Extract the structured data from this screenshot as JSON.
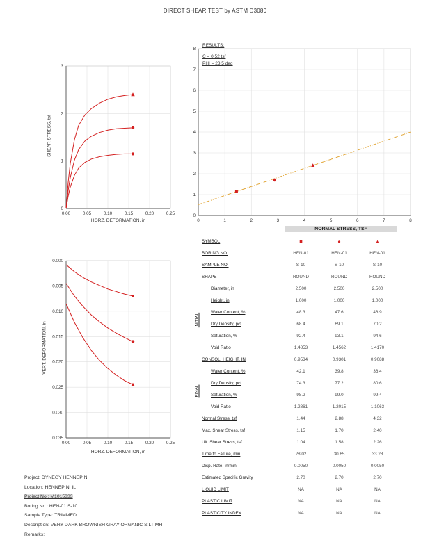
{
  "title": "DIRECT SHEAR TEST by ASTM D3080",
  "results": {
    "title": "RESULTS:",
    "c": "C = 0.52 tsf",
    "phi": "PHI = 23.5 deg"
  },
  "colors": {
    "curve": "#d42020",
    "marker": "#d42020",
    "envelope": "#e2a83c",
    "grid": "#e0e0e0",
    "axis": "#555555"
  },
  "chart_data": [
    {
      "type": "line",
      "title": "Shear stress vs horizontal deformation",
      "xlabel": "HORZ. DEFORMATION, in",
      "ylabel": "SHEAR STRESS, tsf",
      "xlim": [
        0,
        0.25
      ],
      "ylim": [
        0,
        3
      ],
      "xticks": [
        0,
        0.05,
        0.1,
        0.15,
        0.2,
        0.25
      ],
      "xtick_labels": [
        "0.00",
        "0.05",
        "0.10",
        "0.15",
        "0.20",
        "0.25"
      ],
      "yticks": [
        0,
        1,
        2,
        3
      ],
      "ytick_labels": [
        "0",
        "1",
        "2",
        "3"
      ],
      "grid": true,
      "end_markers": true,
      "series": [
        {
          "name": "4.32 tsf",
          "marker": "triangle",
          "points": [
            [
              0,
              0
            ],
            [
              0.005,
              0.55
            ],
            [
              0.01,
              0.95
            ],
            [
              0.02,
              1.45
            ],
            [
              0.03,
              1.75
            ],
            [
              0.045,
              1.97
            ],
            [
              0.06,
              2.1
            ],
            [
              0.08,
              2.22
            ],
            [
              0.1,
              2.3
            ],
            [
              0.12,
              2.35
            ],
            [
              0.14,
              2.38
            ],
            [
              0.16,
              2.4
            ]
          ]
        },
        {
          "name": "2.88 tsf",
          "marker": "circle",
          "points": [
            [
              0,
              0
            ],
            [
              0.005,
              0.38
            ],
            [
              0.01,
              0.65
            ],
            [
              0.02,
              1.02
            ],
            [
              0.03,
              1.24
            ],
            [
              0.045,
              1.42
            ],
            [
              0.06,
              1.52
            ],
            [
              0.08,
              1.6
            ],
            [
              0.1,
              1.65
            ],
            [
              0.12,
              1.68
            ],
            [
              0.14,
              1.69
            ],
            [
              0.16,
              1.7
            ]
          ]
        },
        {
          "name": "1.44 tsf",
          "marker": "square",
          "points": [
            [
              0,
              0
            ],
            [
              0.005,
              0.26
            ],
            [
              0.01,
              0.45
            ],
            [
              0.02,
              0.7
            ],
            [
              0.03,
              0.85
            ],
            [
              0.045,
              0.97
            ],
            [
              0.06,
              1.04
            ],
            [
              0.08,
              1.09
            ],
            [
              0.1,
              1.12
            ],
            [
              0.12,
              1.14
            ],
            [
              0.14,
              1.15
            ],
            [
              0.16,
              1.15
            ]
          ]
        }
      ]
    },
    {
      "type": "scatter",
      "title": "Failure envelope",
      "xlabel": "NORMAL STRESS, TSF",
      "ylabel": "",
      "xlim": [
        0,
        8
      ],
      "ylim": [
        0,
        8
      ],
      "xticks": [
        0,
        1,
        2,
        3,
        4,
        5,
        6,
        7,
        8
      ],
      "xtick_labels": [
        "0",
        "1",
        "2",
        "3",
        "4",
        "5",
        "6",
        "7",
        "8"
      ],
      "yticks": [
        0,
        1,
        2,
        3,
        4,
        5,
        6,
        7,
        8
      ],
      "ytick_labels": [
        "0",
        "1",
        "2",
        "3",
        "4",
        "5",
        "6",
        "7",
        "8"
      ],
      "grid": true,
      "points": [
        {
          "marker": "square",
          "x": 1.44,
          "y": 1.15
        },
        {
          "marker": "circle",
          "x": 2.88,
          "y": 1.7
        },
        {
          "marker": "triangle",
          "x": 4.32,
          "y": 2.4
        }
      ],
      "envelope": {
        "c": 0.52,
        "phi_deg": 23.5,
        "style": "dashed"
      }
    },
    {
      "type": "line",
      "title": "Vertical deformation vs horizontal deformation",
      "xlabel": "HORZ. DEFORMATION, in",
      "ylabel": "VERT. DEFORMATION, in",
      "xlim": [
        0,
        0.25
      ],
      "ylim": [
        0,
        0.035
      ],
      "invert_y": true,
      "xticks": [
        0,
        0.05,
        0.1,
        0.15,
        0.2,
        0.25
      ],
      "xtick_labels": [
        "0.00",
        "0.05",
        "0.10",
        "0.15",
        "0.20",
        "0.25"
      ],
      "yticks": [
        0,
        0.005,
        0.01,
        0.015,
        0.02,
        0.025,
        0.03,
        0.035
      ],
      "ytick_labels": [
        "0.000",
        "0.005",
        "0.010",
        "0.015",
        "0.020",
        "0.025",
        "0.030",
        "0.035"
      ],
      "grid": true,
      "end_markers": true,
      "series": [
        {
          "name": "1.44 tsf",
          "marker": "square",
          "points": [
            [
              0,
              0.0008
            ],
            [
              0.02,
              0.0022
            ],
            [
              0.04,
              0.0033
            ],
            [
              0.06,
              0.0042
            ],
            [
              0.08,
              0.0049
            ],
            [
              0.1,
              0.0056
            ],
            [
              0.12,
              0.0061
            ],
            [
              0.14,
              0.0066
            ],
            [
              0.16,
              0.007
            ]
          ]
        },
        {
          "name": "2.88 tsf",
          "marker": "circle",
          "points": [
            [
              0,
              0.0045
            ],
            [
              0.02,
              0.007
            ],
            [
              0.04,
              0.009
            ],
            [
              0.06,
              0.0107
            ],
            [
              0.08,
              0.0121
            ],
            [
              0.1,
              0.0133
            ],
            [
              0.12,
              0.0143
            ],
            [
              0.14,
              0.0152
            ],
            [
              0.16,
              0.016
            ]
          ]
        },
        {
          "name": "4.32 tsf",
          "marker": "triangle",
          "points": [
            [
              0,
              0.0085
            ],
            [
              0.02,
              0.0122
            ],
            [
              0.04,
              0.0152
            ],
            [
              0.06,
              0.0177
            ],
            [
              0.08,
              0.0197
            ],
            [
              0.1,
              0.0213
            ],
            [
              0.12,
              0.0226
            ],
            [
              0.14,
              0.0237
            ],
            [
              0.16,
              0.0245
            ]
          ]
        }
      ]
    }
  ],
  "table": {
    "header": "NORMAL STRESS, TSF",
    "groups": [
      {
        "label": "INITIAL"
      },
      {
        "label": "FINAL"
      }
    ],
    "rows": [
      {
        "label": "SYMBOL",
        "type": "symbols",
        "values": [
          "square",
          "circle",
          "triangle"
        ],
        "u": true
      },
      {
        "label": "BORING NO.",
        "values": [
          "HEN-01",
          "HEN-01",
          "HEN-01"
        ],
        "u": true
      },
      {
        "label": "SAMPLE NO.",
        "values": [
          "S-10",
          "S-10",
          "S-10"
        ],
        "u": true
      },
      {
        "label": "SHAPE",
        "values": [
          "ROUND",
          "ROUND",
          "ROUND"
        ],
        "u": true
      },
      {
        "label": "Diameter, in",
        "values": [
          "2.500",
          "2.500",
          "2.500"
        ],
        "group": "INITIAL",
        "u": true
      },
      {
        "label": "Height, in",
        "values": [
          "1.000",
          "1.000",
          "1.000"
        ],
        "group": "INITIAL",
        "u": true
      },
      {
        "label": "Water Content, %",
        "values": [
          "48.3",
          "47.6",
          "46.9"
        ],
        "group": "INITIAL",
        "u": true
      },
      {
        "label": "Dry Density, pcf",
        "values": [
          "68.4",
          "69.1",
          "70.2"
        ],
        "group": "INITIAL",
        "u": true
      },
      {
        "label": "Saturation, %",
        "values": [
          "92.4",
          "93.1",
          "94.6"
        ],
        "group": "INITIAL",
        "u": true
      },
      {
        "label": "Void Ratio",
        "values": [
          "1.4853",
          "1.4562",
          "1.4170"
        ],
        "group": "INITIAL",
        "u": true
      },
      {
        "label": "CONSOL. HEIGHT, IN",
        "values": [
          "0.9534",
          "0.9301",
          "0.9088"
        ],
        "u": true
      },
      {
        "label": "Water Content, %",
        "values": [
          "42.1",
          "39.8",
          "36.4"
        ],
        "group": "FINAL",
        "u": true
      },
      {
        "label": "Dry Density, pcf",
        "values": [
          "74.3",
          "77.2",
          "80.6"
        ],
        "group": "FINAL",
        "u": true
      },
      {
        "label": "Saturation, %",
        "values": [
          "98.2",
          "99.0",
          "99.4"
        ],
        "group": "FINAL",
        "u": true
      },
      {
        "label": "Void Ratio",
        "values": [
          "1.2861",
          "1.2015",
          "1.1063"
        ],
        "group": "FINAL",
        "u": true
      },
      {
        "label": "Normal Stress, tsf",
        "values": [
          "1.44",
          "2.88",
          "4.32"
        ],
        "u": true
      },
      {
        "label": "Max. Shear Stress, tsf",
        "values": [
          "1.15",
          "1.70",
          "2.40"
        ],
        "u": false
      },
      {
        "label": "Ult. Shear Stress, tsf",
        "values": [
          "1.04",
          "1.58",
          "2.26"
        ],
        "u": false
      },
      {
        "label": "Time to Failure, min",
        "values": [
          "28.02",
          "30.65",
          "33.28"
        ],
        "u": true
      },
      {
        "label": "Disp. Rate, in/min",
        "values": [
          "0.0050",
          "0.0050",
          "0.0050"
        ],
        "u": true
      },
      {
        "label": "Estimated Specific Gravity",
        "values": [
          "2.70",
          "2.70",
          "2.70"
        ],
        "u": false
      },
      {
        "label": "LIQUID LIMIT",
        "values": [
          "NA",
          "NA",
          "NA"
        ],
        "u": true
      },
      {
        "label": "PLASTIC LIMIT",
        "values": [
          "NA",
          "NA",
          "NA"
        ],
        "u": true
      },
      {
        "label": "PLASTICITY INDEX",
        "values": [
          "NA",
          "NA",
          "NA"
        ],
        "u": true
      }
    ]
  },
  "project": {
    "lines": [
      "Project: DYNEGY HENNEPIN",
      "Location: HENNEPIN, IL",
      "Project No.: M1015333",
      "Boring No.: HEN-01 S-10",
      "Sample Type: TRIMMED",
      "Description: VERY DARK BROWNISH GRAY ORGANIC SILT MH",
      "Remarks:"
    ]
  }
}
